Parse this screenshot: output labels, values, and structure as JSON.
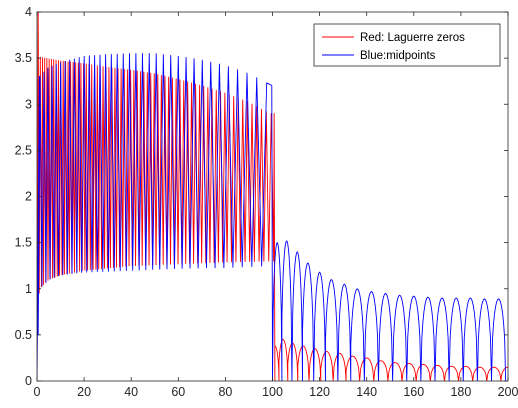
{
  "chart_data": {
    "type": "line",
    "title": "",
    "xlabel": "",
    "ylabel": "",
    "xlim": [
      0,
      200
    ],
    "ylim": [
      0,
      4
    ],
    "xticks": [
      0,
      20,
      40,
      60,
      80,
      100,
      120,
      140,
      160,
      180,
      200
    ],
    "yticks": [
      0,
      0.5,
      1,
      1.5,
      2,
      2.5,
      3,
      3.5,
      4
    ],
    "grid": false,
    "box": true,
    "legend_position": "top-right",
    "series": [
      {
        "name": "Red: Laguerre zeros",
        "color": "#ff0000",
        "shape": "rapid oscillation; upper envelope decays from 3.5 to about 2.9 near x=100; lower envelope about 1.1-1.4; after x=100 small humps whose peaks decay from 0.45 toward 0.15 down to 0 between humps",
        "upper_envelope": {
          "x": [
            0.5,
            1,
            10,
            20,
            30,
            40,
            50,
            60,
            70,
            80,
            90,
            95,
            99
          ],
          "y": [
            4.0,
            3.51,
            3.47,
            3.44,
            3.4,
            3.37,
            3.33,
            3.27,
            3.2,
            3.12,
            3.02,
            2.95,
            2.9
          ]
        },
        "lower_envelope": {
          "x": [
            0,
            1,
            5,
            10,
            20,
            40,
            60,
            80,
            99
          ],
          "y": [
            0.0,
            1.0,
            1.1,
            1.15,
            1.2,
            1.25,
            1.27,
            1.29,
            1.3
          ]
        },
        "after_transition": {
          "x_start": 101,
          "x_end": 200,
          "peaks_x": [
            101,
            104.5,
            108.5,
            113,
            118,
            123,
            128.5,
            134,
            140,
            146,
            152,
            158,
            164,
            170,
            176,
            182,
            188,
            194,
            200
          ],
          "peak_y": [
            0.38,
            0.45,
            0.41,
            0.38,
            0.35,
            0.32,
            0.3,
            0.27,
            0.25,
            0.22,
            0.2,
            0.19,
            0.18,
            0.17,
            0.16,
            0.16,
            0.15,
            0.15,
            0.15
          ],
          "trough_y": 0.0
        }
      },
      {
        "name": "Blue:midpoints",
        "color": "#0000ff",
        "shape": "oscillation with wider spacing; upper envelope rises from 3.3 to 3.55 near x=45 then falls to 3.2 at x=100; lower envelope about 1.0-1.25; after x=100 arches peaking about 1.5 decaying toward 0.9, troughs near 0",
        "upper_envelope": {
          "x": [
            1,
            5,
            10,
            20,
            30,
            40,
            50,
            60,
            70,
            80,
            90,
            100
          ],
          "y": [
            3.3,
            3.4,
            3.45,
            3.52,
            3.54,
            3.55,
            3.55,
            3.52,
            3.48,
            3.42,
            3.33,
            3.2
          ]
        },
        "lower_envelope": {
          "x": [
            0,
            1,
            5,
            10,
            20,
            40,
            60,
            80,
            100
          ],
          "y": [
            0.0,
            1.0,
            1.1,
            1.15,
            1.18,
            1.2,
            1.22,
            1.23,
            1.25
          ]
        },
        "after_transition": {
          "x_start": 100,
          "x_end": 200,
          "peaks_x": [
            102,
            106,
            110.5,
            115,
            120,
            125,
            130.5,
            136,
            142,
            148,
            154,
            160,
            166,
            172,
            178,
            184,
            190,
            196
          ],
          "peak_y": [
            1.5,
            1.52,
            1.4,
            1.28,
            1.18,
            1.1,
            1.05,
            1.0,
            0.97,
            0.95,
            0.93,
            0.92,
            0.91,
            0.9,
            0.9,
            0.9,
            0.89,
            0.89
          ],
          "trough_y": 0.0
        }
      }
    ]
  }
}
